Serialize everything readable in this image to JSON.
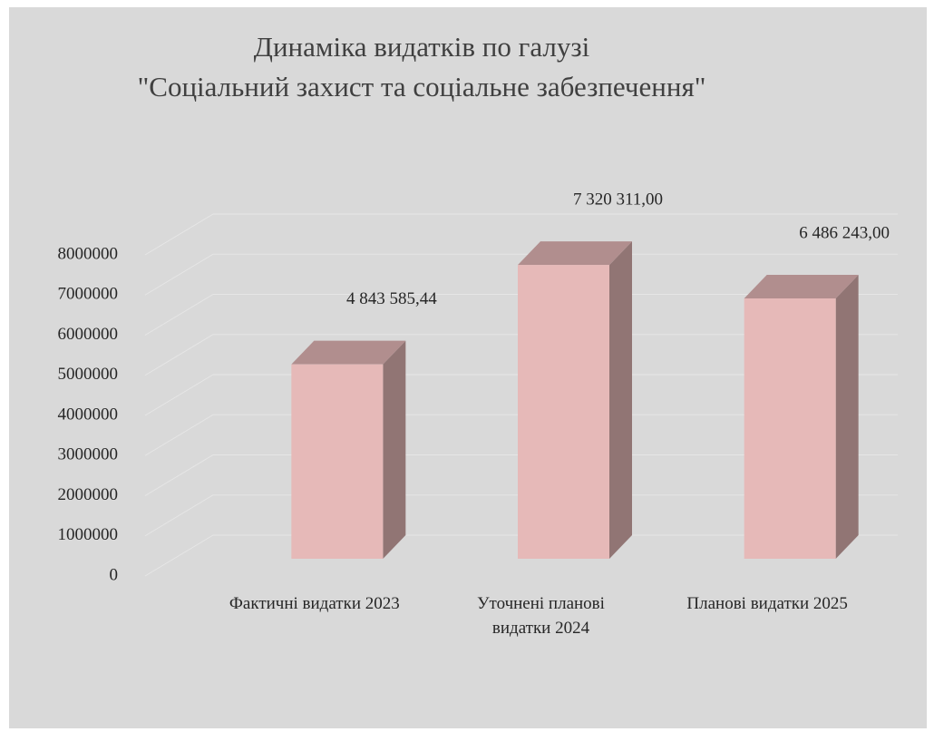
{
  "chart_data": {
    "type": "bar3d",
    "title": "Динаміка видатків по галузі\n\"Соціальний захист та соціальне забезпечення\"",
    "categories": [
      "Фактичні видатки 2023",
      "Уточнені планові видатки 2024",
      "Планові видатки 2025"
    ],
    "values": [
      4843585.44,
      7320311.0,
      6486243.0
    ],
    "value_labels": [
      "4 843 585,44",
      "7 320 311,00",
      "6 486 243,00"
    ],
    "color": "#e6b9b8",
    "ylim": [
      0,
      8000000
    ],
    "yticks": [
      0,
      1000000,
      2000000,
      3000000,
      4000000,
      5000000,
      6000000,
      7000000,
      8000000
    ],
    "grid": true
  }
}
